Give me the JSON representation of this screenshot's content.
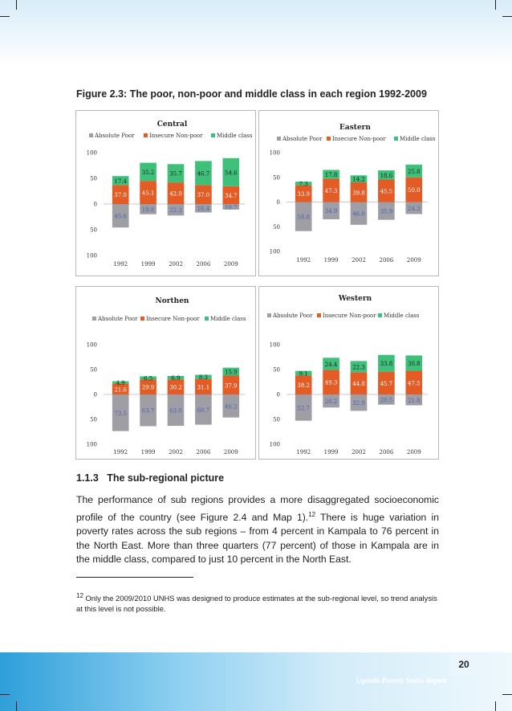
{
  "figure_title": "Figure 2.3: The poor, non-poor and middle class in each region 1992-2009",
  "legend": [
    "Absolute Poor",
    "Insecure Non-poor",
    "Middle class"
  ],
  "colors": {
    "absolute_poor": "#9e9ea4",
    "insecure": "#e35b25",
    "middle": "#3ec07a",
    "label_on_grey": "#4a63b5"
  },
  "chart_data": [
    {
      "type": "bar",
      "stacked": true,
      "title": "Central",
      "categories": [
        "1992",
        "1999",
        "2002",
        "2006",
        "2009"
      ],
      "ylim": [
        -100,
        100
      ],
      "yticks": [
        "100",
        "50",
        "0",
        "50",
        "100"
      ],
      "legend_position": "top",
      "series": [
        {
          "name": "Absolute Poor",
          "values": [
            -45.6,
            -19.8,
            -22.3,
            -16.4,
            -10.7
          ],
          "labels": [
            "45.6",
            "19.8",
            "22.3",
            "16.4",
            "10.7"
          ]
        },
        {
          "name": "Insecure Non-poor",
          "values": [
            37.0,
            45.1,
            42.0,
            37.0,
            34.7
          ],
          "labels": [
            "37.0",
            "45.1",
            "42.0",
            "37.0",
            "34.7"
          ]
        },
        {
          "name": "Middle class",
          "values": [
            17.4,
            35.2,
            35.7,
            46.7,
            54.6
          ],
          "labels": [
            "17.4",
            "35.2",
            "35.7",
            "46.7",
            "54.6"
          ]
        }
      ]
    },
    {
      "type": "bar",
      "stacked": true,
      "title": "Eastern",
      "categories": [
        "1992",
        "1999",
        "2002",
        "2006",
        "2009"
      ],
      "ylim": [
        -100,
        100
      ],
      "yticks": [
        "100",
        "50",
        "0",
        "50",
        "100"
      ],
      "legend_position": "top",
      "series": [
        {
          "name": "Absolute Poor",
          "values": [
            -58.8,
            -34.9,
            -46.0,
            -35.9,
            -24.3
          ],
          "labels": [
            "58.8",
            "34.9",
            "46.0",
            "35.9",
            "24.3"
          ]
        },
        {
          "name": "Insecure Non-poor",
          "values": [
            33.9,
            47.3,
            39.8,
            45.5,
            50.0
          ],
          "labels": [
            "33.9",
            "47.3",
            "39.8",
            "45.5",
            "50.0"
          ]
        },
        {
          "name": "Middle class",
          "values": [
            7.3,
            17.8,
            14.2,
            18.6,
            25.8
          ],
          "labels": [
            "7.3",
            "17.8",
            "14.2",
            "18.6",
            "25.8"
          ]
        }
      ]
    },
    {
      "type": "bar",
      "stacked": true,
      "title": "Northen",
      "categories": [
        "1992",
        "1999",
        "2002",
        "2006",
        "2009"
      ],
      "ylim": [
        -100,
        100
      ],
      "yticks": [
        "100",
        "50",
        "0",
        "50",
        "100"
      ],
      "legend_position": "top",
      "series": [
        {
          "name": "Absolute Poor",
          "values": [
            -73.5,
            -63.7,
            -63.0,
            -60.7,
            -46.2
          ],
          "labels": [
            "73.5",
            "63.7",
            "63.0",
            "60.7",
            "46.2"
          ]
        },
        {
          "name": "Insecure Non-poor",
          "values": [
            21.6,
            29.9,
            30.2,
            31.1,
            37.9
          ],
          "labels": [
            "21.6",
            "29.9",
            "30.2",
            "31.1",
            "37.9"
          ]
        },
        {
          "name": "Middle class",
          "values": [
            4.9,
            6.5,
            6.9,
            8.3,
            15.9
          ],
          "labels": [
            "4.9",
            "6.5",
            "6.9",
            "8.3",
            "15.9"
          ]
        }
      ]
    },
    {
      "type": "bar",
      "stacked": true,
      "title": "Western",
      "categories": [
        "1992",
        "1999",
        "2002",
        "2006",
        "2009"
      ],
      "ylim": [
        -100,
        100
      ],
      "yticks": [
        "100",
        "50",
        "0",
        "50",
        "100"
      ],
      "legend_position": "top",
      "series": [
        {
          "name": "Absolute Poor",
          "values": [
            -52.7,
            -26.2,
            -32.9,
            -20.5,
            -21.8
          ],
          "labels": [
            "52.7",
            "26.2",
            "32.9",
            "20.5",
            "21.8"
          ]
        },
        {
          "name": "Insecure Non-poor",
          "values": [
            38.2,
            49.3,
            44.8,
            45.7,
            47.5
          ],
          "labels": [
            "38.2",
            "49.3",
            "44.8",
            "45.7",
            "47.5"
          ]
        },
        {
          "name": "Middle class",
          "values": [
            9.1,
            24.4,
            22.3,
            33.8,
            30.8
          ],
          "labels": [
            "9.1",
            "24.4",
            "22.3",
            "33.8",
            "30.8"
          ]
        }
      ]
    }
  ],
  "section": {
    "number": "1.1.3",
    "title": "The sub-regional picture"
  },
  "paragraph": {
    "part1": "The performance of sub regions provides a more disaggregated socioeconomic profile of the country (see Figure 2.4 and Map 1).",
    "ref": "12",
    "part2": " There is huge variation in poverty rates across the sub regions – from 4 percent in Kampala to 76 percent in the North East. More than three quarters (77 percent) of those in Kampala are in the middle class, compared to just 10 percent in the North East."
  },
  "footnote": {
    "number": "12",
    "text": " Only the 2009/2010 UNHS was designed to produce estimates at the sub-regional level, so trend analysis at this level is not possible."
  },
  "page_number": "20",
  "running_title": "Uganda Poverty Status Report"
}
